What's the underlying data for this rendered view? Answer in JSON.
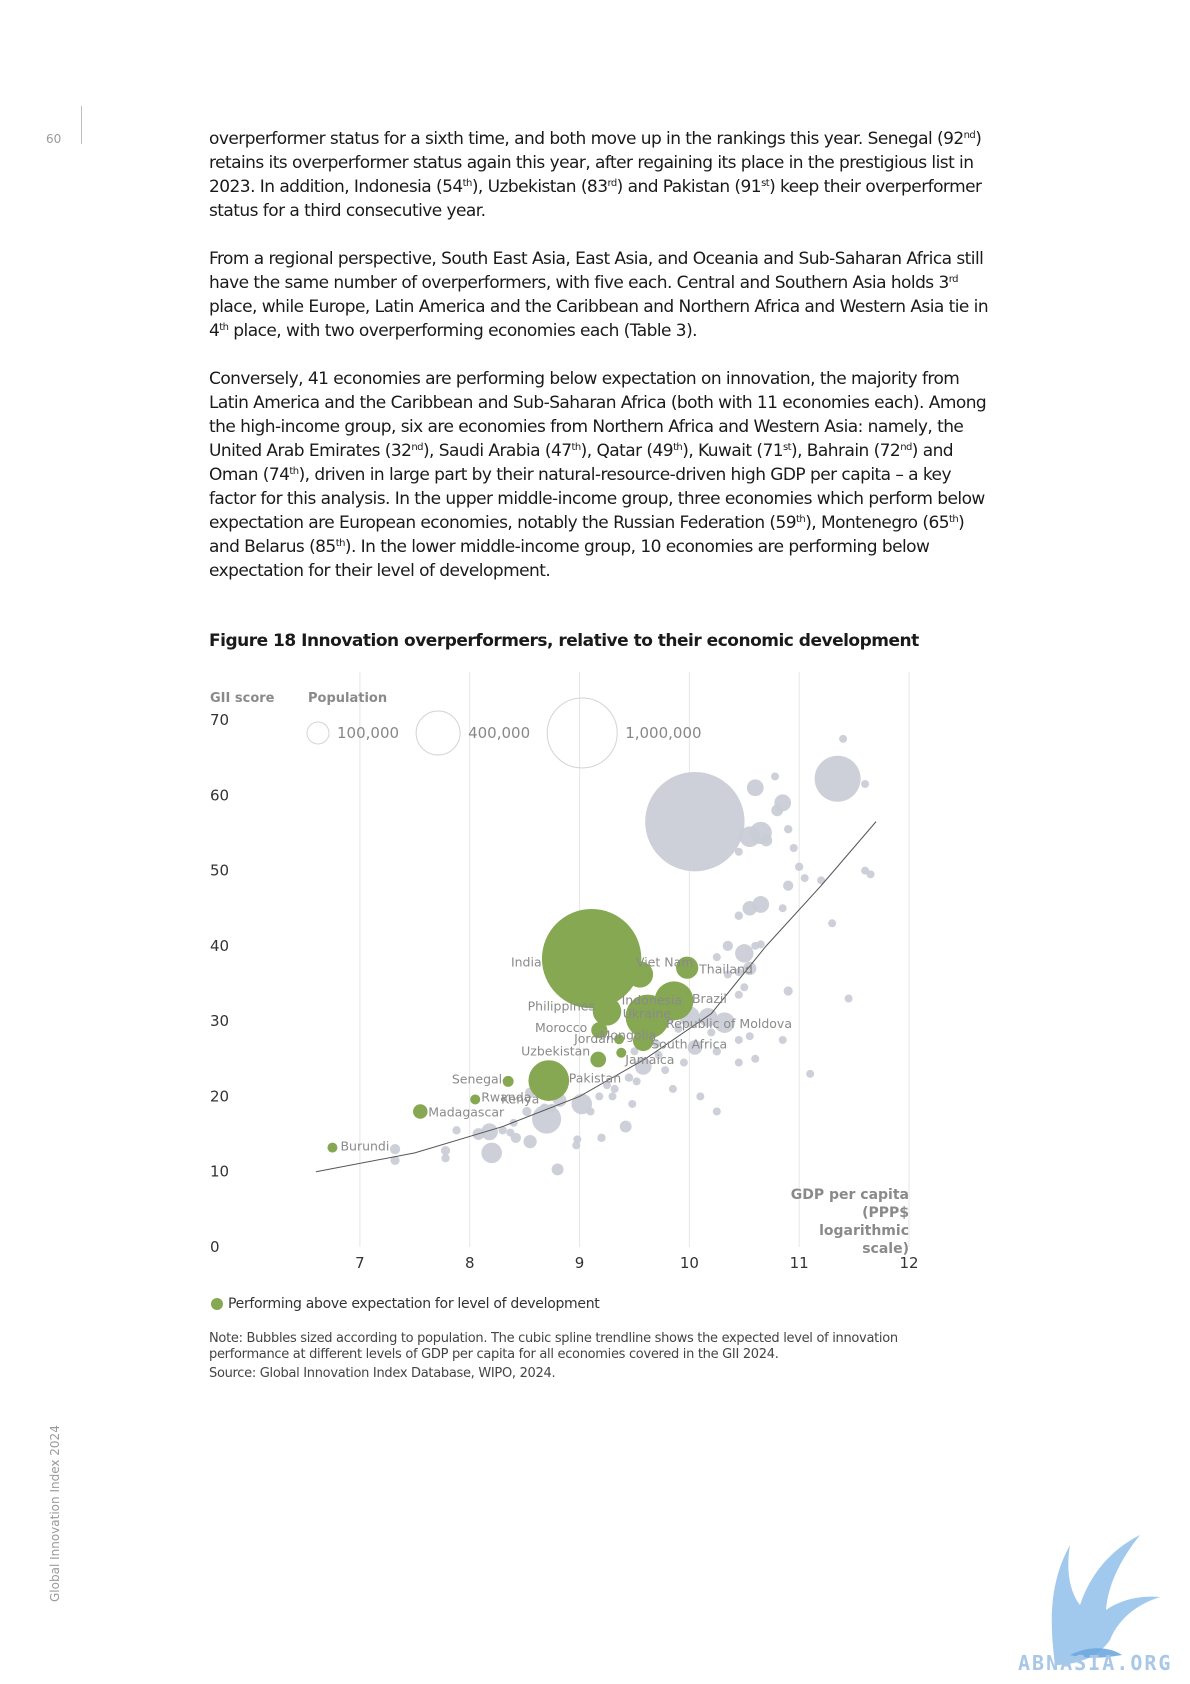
{
  "page": {
    "number": "60",
    "footer_side": "Global Innovation Index 2024",
    "watermark": "ABNASIA.ORG"
  },
  "body": {
    "p1_parts": [
      "overperformer status for a sixth time, and both move up in the rankings this year. Senegal (92",
      "nd",
      ") retains its overperformer status again this year, after regaining its place in the prestigious list in 2023. In addition, Indonesia (54",
      "th",
      "), Uzbekistan (83",
      "rd",
      ") and Pakistan (91",
      "st",
      ") keep their overperformer status for a third consecutive year."
    ],
    "p2_parts": [
      "From a regional perspective, South East Asia, East Asia, and Oceania and Sub-Saharan Africa still have the same number of overperformers, with five each. Central and Southern Asia holds 3",
      "rd",
      " place, while Europe, Latin America and the Caribbean and Northern Africa and Western Asia tie in 4",
      "th",
      " place, with two overperforming economies each (Table 3)."
    ],
    "p3_parts": [
      "Conversely, 41 economies are performing below expectation on innovation, the majority from Latin America and the Caribbean and Sub-Saharan Africa (both with 11 economies each). Among the high-income group, six are economies from Northern Africa and Western Asia: namely, the United Arab Emirates (32",
      "nd",
      "), Saudi Arabia (47",
      "th",
      "), Qatar (49",
      "th",
      "), Kuwait (71",
      "st",
      "), Bahrain (72",
      "nd",
      ") and Oman (74",
      "th",
      "), driven in large part by their natural-resource-driven high GDP per capita – a key factor for this analysis. In the upper middle-income group, three economies which perform below expectation are European economies, notably the Russian Federation (59",
      "th",
      "), Montenegro (65",
      "th",
      ") and Belarus (85",
      "th",
      "). In the lower middle-income group, 10 economies are performing below expectation for their level of development."
    ]
  },
  "figure": {
    "title": "Figure 18 Innovation overperformers, relative to their economic development",
    "legend_label": "Performing above expectation for level of development",
    "note": "Note: Bubbles sized according to population. The cubic spline trendline shows the expected level of innovation performance at different levels of GDP per capita for all economies covered in the GII 2024.",
    "source": "Source: Global Innovation Index Database, WIPO, 2024."
  },
  "chart_data": {
    "type": "scatter",
    "ylabel": "GII score",
    "xlabel_lines": [
      "GDP per capita",
      "(PPP$",
      "logarithmic",
      "scale)"
    ],
    "xlim": [
      6.5,
      12
    ],
    "ylim": [
      0,
      70
    ],
    "x_ticks": [
      "7",
      "8",
      "9",
      "10",
      "11",
      "12"
    ],
    "y_ticks": [
      "0",
      "10",
      "20",
      "30",
      "40",
      "50",
      "60",
      "70"
    ],
    "log_scale_x": true,
    "grid": true,
    "size_legend": {
      "title": "Population",
      "entries": [
        {
          "label": "100,000",
          "value": 100000
        },
        {
          "label": "400,000",
          "value": 400000
        },
        {
          "label": "1,000,000",
          "value": 1000000
        }
      ]
    },
    "colors": {
      "highlight": "#86a852",
      "other": "#c9ccd6",
      "trend": "#555555"
    },
    "trendline": [
      [
        6.6,
        10
      ],
      [
        7.5,
        12.5
      ],
      [
        8.3,
        16
      ],
      [
        9.0,
        20
      ],
      [
        9.6,
        25
      ],
      [
        10.2,
        31
      ],
      [
        10.7,
        40
      ],
      [
        11.2,
        48
      ],
      [
        11.7,
        56.5
      ]
    ],
    "highlighted": [
      {
        "name": "India",
        "x": 9.11,
        "y": 38.3,
        "pop": 1400000
      },
      {
        "name": "Viet Nam",
        "x": 9.55,
        "y": 36.2,
        "pop": 98000
      },
      {
        "name": "Thailand",
        "x": 9.98,
        "y": 37.1,
        "pop": 70000
      },
      {
        "name": "Indonesia",
        "x": 9.62,
        "y": 30.6,
        "pop": 275000
      },
      {
        "name": "Brazil",
        "x": 9.86,
        "y": 32.7,
        "pop": 215000
      },
      {
        "name": "Philippines",
        "x": 9.25,
        "y": 31.3,
        "pop": 115000
      },
      {
        "name": "Ukraine",
        "x": 9.63,
        "y": 30.8,
        "pop": 40000
      },
      {
        "name": "Mongolia",
        "x": 9.62,
        "y": 28.6,
        "pop": 3400
      },
      {
        "name": "Republic of Moldova",
        "x": 9.66,
        "y": 28.3,
        "pop": 2500
      },
      {
        "name": "Morocco",
        "x": 9.18,
        "y": 28.8,
        "pop": 37000
      },
      {
        "name": "Jordan",
        "x": 9.36,
        "y": 27.6,
        "pop": 11000
      },
      {
        "name": "South Africa",
        "x": 9.58,
        "y": 27.4,
        "pop": 60000
      },
      {
        "name": "Jamaica",
        "x": 9.38,
        "y": 25.8,
        "pop": 2800
      },
      {
        "name": "Uzbekistan",
        "x": 9.17,
        "y": 24.9,
        "pop": 35000
      },
      {
        "name": "Pakistan",
        "x": 8.72,
        "y": 22.1,
        "pop": 235000
      },
      {
        "name": "Kenya",
        "x": 8.74,
        "y": 20.9,
        "pop": 54000
      },
      {
        "name": "Senegal",
        "x": 8.35,
        "y": 22.0,
        "pop": 17000
      },
      {
        "name": "Rwanda",
        "x": 8.05,
        "y": 19.6,
        "pop": 13500
      },
      {
        "name": "Madagascar",
        "x": 7.55,
        "y": 18.0,
        "pop": 30000
      },
      {
        "name": "Burundi",
        "x": 6.75,
        "y": 13.2,
        "pop": 12900
      }
    ],
    "others": [
      [
        11.4,
        67.5,
        8000
      ],
      [
        10.78,
        62.5,
        9000
      ],
      [
        11.35,
        62.2,
        300000
      ],
      [
        10.6,
        61.0,
        40000
      ],
      [
        11.6,
        61.5,
        5000
      ],
      [
        10.85,
        59.0,
        40000
      ],
      [
        10.8,
        58.0,
        20000
      ],
      [
        10.05,
        56.5,
        1400000
      ],
      [
        10.9,
        55.5,
        10000
      ],
      [
        10.65,
        55.0,
        70000
      ],
      [
        10.55,
        54.5,
        60000
      ],
      [
        10.7,
        54.0,
        20000
      ],
      [
        10.95,
        53.0,
        8000
      ],
      [
        10.45,
        52.5,
        5000
      ],
      [
        11.0,
        50.5,
        10000
      ],
      [
        11.6,
        50.0,
        6000
      ],
      [
        11.65,
        49.5,
        5000
      ],
      [
        11.05,
        49.0,
        8000
      ],
      [
        11.2,
        48.7,
        6000
      ],
      [
        10.9,
        48.0,
        15000
      ],
      [
        10.55,
        45.0,
        30000
      ],
      [
        10.65,
        45.5,
        40000
      ],
      [
        10.85,
        45.0,
        5000
      ],
      [
        10.45,
        44.0,
        10000
      ],
      [
        11.3,
        43.0,
        8000
      ],
      [
        10.35,
        40.0,
        15000
      ],
      [
        10.5,
        39.0,
        48000
      ],
      [
        10.6,
        40.0,
        7000
      ],
      [
        10.65,
        40.2,
        5000
      ],
      [
        10.25,
        38.5,
        6000
      ],
      [
        10.55,
        37.0,
        25000
      ],
      [
        10.45,
        36.5,
        8000
      ],
      [
        10.35,
        36.2,
        5000
      ],
      [
        10.5,
        34.5,
        6000
      ],
      [
        10.45,
        33.5,
        8000
      ],
      [
        10.9,
        34.0,
        12000
      ],
      [
        11.45,
        33.0,
        5000
      ],
      [
        10.17,
        30.5,
        50000
      ],
      [
        10.32,
        29.8,
        60000
      ],
      [
        9.82,
        30.5,
        20000
      ],
      [
        10.0,
        30.6,
        60000
      ],
      [
        9.9,
        29.0,
        10000
      ],
      [
        10.2,
        28.5,
        5000
      ],
      [
        10.45,
        27.5,
        5000
      ],
      [
        10.55,
        28.0,
        4000
      ],
      [
        10.85,
        27.5,
        4000
      ],
      [
        9.7,
        27.0,
        8000
      ],
      [
        9.5,
        26.0,
        5000
      ],
      [
        10.05,
        26.5,
        30000
      ],
      [
        10.25,
        26.0,
        10000
      ],
      [
        9.72,
        25.5,
        8000
      ],
      [
        9.58,
        24.0,
        40000
      ],
      [
        9.78,
        23.5,
        5000
      ],
      [
        9.95,
        24.5,
        6000
      ],
      [
        10.45,
        24.5,
        5000
      ],
      [
        9.45,
        22.5,
        10000
      ],
      [
        9.52,
        22.0,
        8000
      ],
      [
        9.32,
        21.0,
        6000
      ],
      [
        9.18,
        20.0,
        6000
      ],
      [
        9.02,
        19.0,
        60000
      ],
      [
        8.55,
        20.5,
        15000
      ],
      [
        8.82,
        19.5,
        25000
      ],
      [
        9.25,
        21.5,
        5000
      ],
      [
        9.85,
        21.0,
        8000
      ],
      [
        10.1,
        20.0,
        7000
      ],
      [
        9.48,
        19.0,
        8000
      ],
      [
        9.3,
        20.0,
        5000
      ],
      [
        8.68,
        18.5,
        10000
      ],
      [
        8.52,
        18.0,
        12000
      ],
      [
        8.7,
        17.0,
        120000
      ],
      [
        9.1,
        18.0,
        6000
      ],
      [
        10.25,
        18.0,
        5000
      ],
      [
        8.4,
        16.5,
        6000
      ],
      [
        8.08,
        15.0,
        20000
      ],
      [
        8.18,
        15.3,
        40000
      ],
      [
        8.3,
        15.5,
        10000
      ],
      [
        8.37,
        15.2,
        8000
      ],
      [
        8.42,
        14.5,
        15000
      ],
      [
        8.55,
        14.0,
        25000
      ],
      [
        7.88,
        15.5,
        10000
      ],
      [
        9.42,
        16.0,
        20000
      ],
      [
        9.2,
        14.5,
        10000
      ],
      [
        7.32,
        13.0,
        15000
      ],
      [
        7.32,
        11.5,
        12000
      ],
      [
        7.78,
        12.8,
        12000
      ],
      [
        7.78,
        11.8,
        10000
      ],
      [
        8.2,
        12.5,
        60000
      ],
      [
        8.8,
        10.3,
        20000
      ],
      [
        8.97,
        13.5,
        5000
      ],
      [
        8.98,
        14.3,
        5000
      ],
      [
        10.6,
        25.0,
        5000
      ],
      [
        11.1,
        23.0,
        5000
      ],
      [
        8.75,
        18.5,
        8000
      ],
      [
        8.8,
        21.8,
        6000
      ]
    ]
  }
}
